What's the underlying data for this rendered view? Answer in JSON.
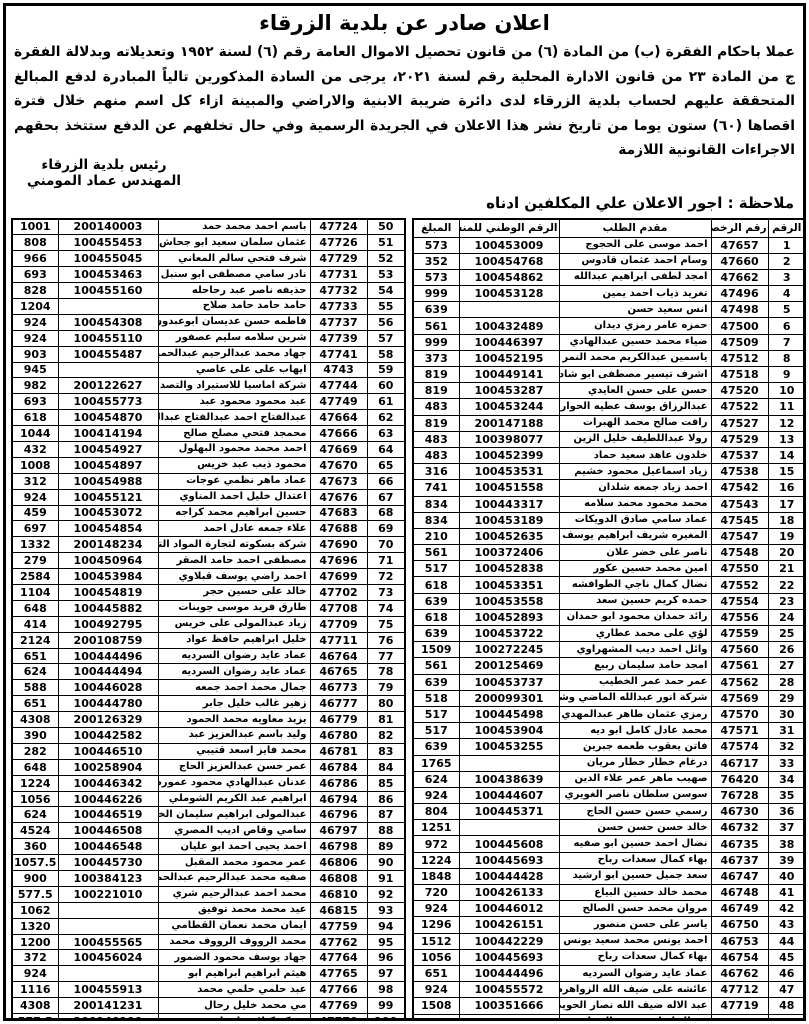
{
  "colors": {
    "ink": "#000000",
    "paper": "#ffffff"
  },
  "header": {
    "title": "اعلان صادر عن بلدية الزرقاء",
    "body": "عملا باحكام الفقرة (ب) من المادة (٦) من قانون تحصيل الاموال العامة رقم (٦) لسنة ١٩٥٢ وتعديلاته وبدلالة الفقرة ج من المادة ٢٣ من قانون الادارة المحلية رقم لسنة ٢٠٢١، يرجى من السادة المذكورين تالياً المبادرة لدفع المبالغ المتحققة عليهم لحساب بلدية الزرقاء لدى دائرة ضريبة الابنية والاراضي والمبينة ازاء كل اسم منهم خلال فترة اقصاها (٦٠) ستون يوما من تاريخ نشر هذا الاعلان في الجريدة الرسمية وفي حال تخلفهم عن الدفع ستتخذ بحقهم الاجراءات القانونية اللازمة",
    "signature_title": "رئيس بلدية الزرقاء",
    "signature_name": "المهندس عماد المومني",
    "note": "ملاحظة : اجور الاعلان علي المكلفين ادناه"
  },
  "table": {
    "headers": [
      "الرقم",
      "رقم الرخصة",
      "مقدم الطلب",
      "الرقم الوطني للمنشاه",
      "المبلغ"
    ],
    "rows_right": [
      [
        "1",
        "47657",
        "احمد موسى على الحجوج",
        "100453009",
        "573"
      ],
      [
        "2",
        "47660",
        "وسام احمد عثمان قادوس",
        "100454768",
        "352"
      ],
      [
        "3",
        "47662",
        "امجد لطفى ابراهيم عبدالله",
        "100454862",
        "573"
      ],
      [
        "4",
        "47496",
        "تغريد ذياب احمد يمين",
        "100453128",
        "999"
      ],
      [
        "5",
        "47498",
        "انس سعيد حسن",
        "",
        "639"
      ],
      [
        "6",
        "47500",
        "حمزه عامر رمزي ديدان",
        "100432489",
        "561"
      ],
      [
        "7",
        "47509",
        "ضياء محمد حسين عبدالهادي",
        "100446397",
        "999"
      ],
      [
        "8",
        "47512",
        "ياسمين عبدالكريم محمد النمر",
        "100452195",
        "373"
      ],
      [
        "9",
        "47518",
        "اشرف تيسير مصطفى ابو شادوف",
        "100449141",
        "819"
      ],
      [
        "10",
        "47520",
        "حسن على حسن العايدي",
        "100453287",
        "819"
      ],
      [
        "11",
        "47522",
        "عبدالرزاق يوسف عطيه الحواري",
        "100453244",
        "483"
      ],
      [
        "12",
        "47527",
        "رافت صالح محمد الهبرات",
        "200147188",
        "819"
      ],
      [
        "13",
        "47529",
        "رولا عبداللطيف خليل الزين",
        "100398077",
        "483"
      ],
      [
        "14",
        "47537",
        "خلدون عاهد سعيد حماد",
        "100452399",
        "483"
      ],
      [
        "15",
        "47538",
        "زياد اسماعيل محمود خشيم",
        "100453531",
        "316"
      ],
      [
        "16",
        "47542",
        "احمد زياد جمعه شلدان",
        "100451558",
        "741"
      ],
      [
        "17",
        "47543",
        "محمد محمود محمد سلامه",
        "100443317",
        "834"
      ],
      [
        "18",
        "47545",
        "عماد سامي صادق الدويكات",
        "100453189",
        "834"
      ],
      [
        "19",
        "47547",
        "المغيره شريف ابراهيم يوسف",
        "100452635",
        "210"
      ],
      [
        "20",
        "47548",
        "ناصر على خضر علان",
        "100372406",
        "561"
      ],
      [
        "21",
        "47550",
        "امين محمد حسين عكور",
        "100452838",
        "517"
      ],
      [
        "22",
        "47552",
        "نضال كمال ناجي الطوافشه",
        "100453351",
        "618"
      ],
      [
        "23",
        "47554",
        "حمده كريم حسين سعد",
        "100453558",
        "639"
      ],
      [
        "24",
        "47556",
        "رائد حمدان محمود ابو حمدان",
        "100452893",
        "618"
      ],
      [
        "25",
        "47559",
        "لؤي على محمد عطاري",
        "100453722",
        "639"
      ],
      [
        "26",
        "47560",
        "وائل احمد ديب المشهراوي",
        "100272245",
        "1509"
      ],
      [
        "27",
        "47561",
        "امجد حامد سليمان ربيع",
        "200125469",
        "561"
      ],
      [
        "28",
        "47562",
        "عمر حمد عمر الخطيب",
        "100453737",
        "639"
      ],
      [
        "29",
        "47569",
        "شركة انور عبدالله الماضي وشريكته",
        "200099301",
        "518"
      ],
      [
        "30",
        "47570",
        "رمزي عثمان طاهر عبدالمهدي",
        "100445498",
        "517"
      ],
      [
        "31",
        "47571",
        "محمد عادل كامل ابو ديه",
        "100453904",
        "517"
      ],
      [
        "32",
        "47574",
        "فاتن يعقوب طعمه جبرين",
        "100453255",
        "639"
      ],
      [
        "33",
        "46717",
        "درغام خطار خطار مريان",
        "",
        "1765"
      ],
      [
        "34",
        "76420",
        "صهيب ماهر عمر علاء الدين",
        "100438639",
        "624"
      ],
      [
        "35",
        "76728",
        "سوسن سلطان ناصر الغويري",
        "100444607",
        "924"
      ],
      [
        "36",
        "46730",
        "رسمي حسن حسن الحاج",
        "100445371",
        "804"
      ],
      [
        "37",
        "46732",
        "خالد حسن حسن حسن",
        "",
        "1251"
      ],
      [
        "38",
        "46735",
        "نضال احمد حسين ابو صفيه",
        "100445608",
        "972"
      ],
      [
        "39",
        "46737",
        "بهاء كمال سعدات رباح",
        "100445693",
        "1224"
      ],
      [
        "40",
        "46747",
        "سعد جميل حسين ابو ارشيد",
        "100444428",
        "1848"
      ],
      [
        "41",
        "46748",
        "محمد خالد حسين البياع",
        "100426133",
        "720"
      ],
      [
        "42",
        "46749",
        "مروان محمد حسن الصالح",
        "100446012",
        "924"
      ],
      [
        "43",
        "46750",
        "ياسر على حسن منصور",
        "100426151",
        "1296"
      ],
      [
        "44",
        "46753",
        "احمد يونس محمد سعيد يونس",
        "100442229",
        "1512"
      ],
      [
        "45",
        "46754",
        "بهاء كمال سعدات رباح",
        "100445693",
        "1056"
      ],
      [
        "46",
        "46762",
        "عماد عايد رضوان السرديه",
        "100444496",
        "651"
      ],
      [
        "47",
        "47712",
        "عائشه على ضيف الله الزواهره",
        "100455572",
        "924"
      ],
      [
        "48",
        "47719",
        "عبد الاله ضيف الله نصار الحويطات",
        "100351666",
        "1508"
      ],
      [
        "49",
        "47723",
        "فريال ابراهيم عمر النوباني",
        "200123817",
        "1998.5"
      ]
    ],
    "rows_left": [
      [
        "50",
        "47724",
        "باسم احمد محمد حمد",
        "200140003",
        "1001"
      ],
      [
        "51",
        "47726",
        "عثمان سلمان سعيد ابو جحاش",
        "100455453",
        "808"
      ],
      [
        "52",
        "47729",
        "شرف فتحي سالم المعاني",
        "100455045",
        "966"
      ],
      [
        "53",
        "47731",
        "نادر سامي مصطفى ابو سنبل",
        "100453463",
        "693"
      ],
      [
        "54",
        "47732",
        "حذيفه ناصر عبد رحاحله",
        "100455160",
        "828"
      ],
      [
        "55",
        "47733",
        "حامد حامد حامد صلاح",
        "",
        "1204"
      ],
      [
        "56",
        "47737",
        "فاطمه حسن عديسان ابوعبدون",
        "100454308",
        "924"
      ],
      [
        "57",
        "47739",
        "شرين سلامه سليم عصفور",
        "100455110",
        "924"
      ],
      [
        "58",
        "47741",
        "جهاد محمد عبدالرحيم عبدالحميد",
        "100455487",
        "903"
      ],
      [
        "59",
        "4743",
        "ايهاب على على عاصي",
        "",
        "945"
      ],
      [
        "60",
        "47744",
        "شركة اماسيا للاستيراد والتصدير",
        "200122627",
        "982"
      ],
      [
        "61",
        "47749",
        "عبد محمود محمود عبد",
        "100455773",
        "693"
      ],
      [
        "62",
        "47664",
        "عبدالفتاح احمد عبدالفتاح عبدالله",
        "100454870",
        "618"
      ],
      [
        "63",
        "47666",
        "محمجد فتحي مصلح صالح",
        "100414194",
        "1044"
      ],
      [
        "64",
        "47669",
        "احمد محمد محمود البهلول",
        "100454927",
        "432"
      ],
      [
        "65",
        "47670",
        "محمود ذيب عبد خريس",
        "100454897",
        "1008"
      ],
      [
        "66",
        "47673",
        "عماد ماهر نظمي عوجات",
        "100454988",
        "312"
      ],
      [
        "67",
        "47676",
        "اعتدال خليل احمد المناوي",
        "100455121",
        "924"
      ],
      [
        "68",
        "47683",
        "حسين ابراهيم محمد كراجه",
        "100453072",
        "459"
      ],
      [
        "69",
        "47688",
        "علاء جمعه عادل احمد",
        "100454854",
        "697"
      ],
      [
        "70",
        "47690",
        "شركة بسكوته لتجارة المواد التموينيه",
        "200148234",
        "1332"
      ],
      [
        "71",
        "47696",
        "مصطفى احمد حامد الصقر",
        "100450964",
        "279"
      ],
      [
        "72",
        "47699",
        "احمد راضي يوسف قبلاوي",
        "100453984",
        "2584"
      ],
      [
        "73",
        "47702",
        "خالد على حسين حجر",
        "100454819",
        "1104"
      ],
      [
        "74",
        "47708",
        "طارق فريد موسى جوينات",
        "100445882",
        "648"
      ],
      [
        "75",
        "47709",
        "زياد عبدالمولى على خريس",
        "100492795",
        "414"
      ],
      [
        "76",
        "47711",
        "خليل ابراهيم حافظ عواد",
        "200108759",
        "2124"
      ],
      [
        "77",
        "46764",
        "عماد عايد رضوان السرديه",
        "100444496",
        "651"
      ],
      [
        "78",
        "46765",
        "عماد عايد رضوان السرديه",
        "100444494",
        "624"
      ],
      [
        "79",
        "46773",
        "جمال محمد احمد جمعه",
        "100446028",
        "588"
      ],
      [
        "80",
        "46777",
        "زهير غالب خليل جابر",
        "100444780",
        "651"
      ],
      [
        "81",
        "46779",
        "يزيد معاويه محمد الحمود",
        "200126329",
        "4308"
      ],
      [
        "82",
        "46780",
        "وليد باسم عبدالعزيز عبد",
        "100442582",
        "390"
      ],
      [
        "83",
        "46781",
        "محمد فايز اسعد قتيبي",
        "100446510",
        "282"
      ],
      [
        "84",
        "46784",
        "عمر حسن عبدالعزيز الحاج",
        "100258904",
        "648"
      ],
      [
        "85",
        "46786",
        "عدنان عبدالهادي محمود عموره",
        "100446342",
        "1224"
      ],
      [
        "86",
        "46794",
        "ابراهيم عبد الكريم الشوملي",
        "100446226",
        "1056"
      ],
      [
        "87",
        "46796",
        "عبدالمولى ابراهيم سليمان الخلايله",
        "100446519",
        "624"
      ],
      [
        "88",
        "46797",
        "سامي وقاص اديب المصري",
        "100446508",
        "4524"
      ],
      [
        "89",
        "46798",
        "احمد يحيى احمد ابو عليان",
        "100446548",
        "360"
      ],
      [
        "90",
        "46806",
        "عمر محمود محمد المقبل",
        "100445730",
        "1057.5"
      ],
      [
        "91",
        "46808",
        "صفيه محمد عبدالرحيم عبدالحميد",
        "100384123",
        "900"
      ],
      [
        "92",
        "46810",
        "محمد احمد عبدالرحيم شري",
        "100221010",
        "577.5"
      ],
      [
        "93",
        "46815",
        "عيد محمد محمد توفيق",
        "",
        "1062"
      ],
      [
        "94",
        "47759",
        "ايمان محمد نعمان القطامي",
        "",
        "1320"
      ],
      [
        "95",
        "47762",
        "محمد الرووف الرووف محمد",
        "100455565",
        "1200"
      ],
      [
        "96",
        "47764",
        "جهاد يوسف محمود الضمور",
        "100456024",
        "372"
      ],
      [
        "97",
        "47765",
        "هيثم ابراهيم ابراهيم ابو",
        "",
        "924"
      ],
      [
        "98",
        "47766",
        "عبد حلمي حلمي محمد",
        "100455913",
        "1116"
      ],
      [
        "99",
        "47769",
        "مي محمد خليل رحال",
        "200141231",
        "4308"
      ],
      [
        "100",
        "47770",
        "شركة كيلاني اخوان",
        "200140190",
        "577.5"
      ]
    ]
  }
}
